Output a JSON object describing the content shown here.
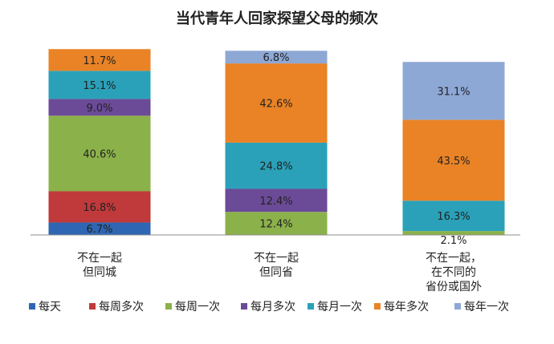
{
  "chart_data": {
    "type": "bar",
    "stacked": true,
    "title": "当代青年人回家探望父母的频次",
    "categories": [
      [
        "不在一起",
        "但同城"
      ],
      [
        "不在一起",
        "但同省"
      ],
      [
        "不在一起，",
        "在不同的",
        "省份或国外"
      ]
    ],
    "series": [
      {
        "name": "每天",
        "color": "#2F66B3",
        "values": [
          6.7,
          0,
          0
        ]
      },
      {
        "name": "每周多次",
        "color": "#C0393B",
        "values": [
          16.8,
          0,
          0
        ]
      },
      {
        "name": "每周一次",
        "color": "#8BB14A",
        "values": [
          40.6,
          12.4,
          2.1
        ]
      },
      {
        "name": "每月多次",
        "color": "#6B4A97",
        "values": [
          9.0,
          12.4,
          0
        ]
      },
      {
        "name": "每月一次",
        "color": "#2AA1B8",
        "values": [
          15.1,
          24.8,
          16.3
        ]
      },
      {
        "name": "每年多次",
        "color": "#E98326",
        "values": [
          11.7,
          42.6,
          43.5
        ]
      },
      {
        "name": "每年一次",
        "color": "#8EA8D6",
        "values": [
          0,
          6.8,
          31.1
        ]
      }
    ],
    "value_format": "%",
    "legend_position": "bottom",
    "grid": false
  }
}
